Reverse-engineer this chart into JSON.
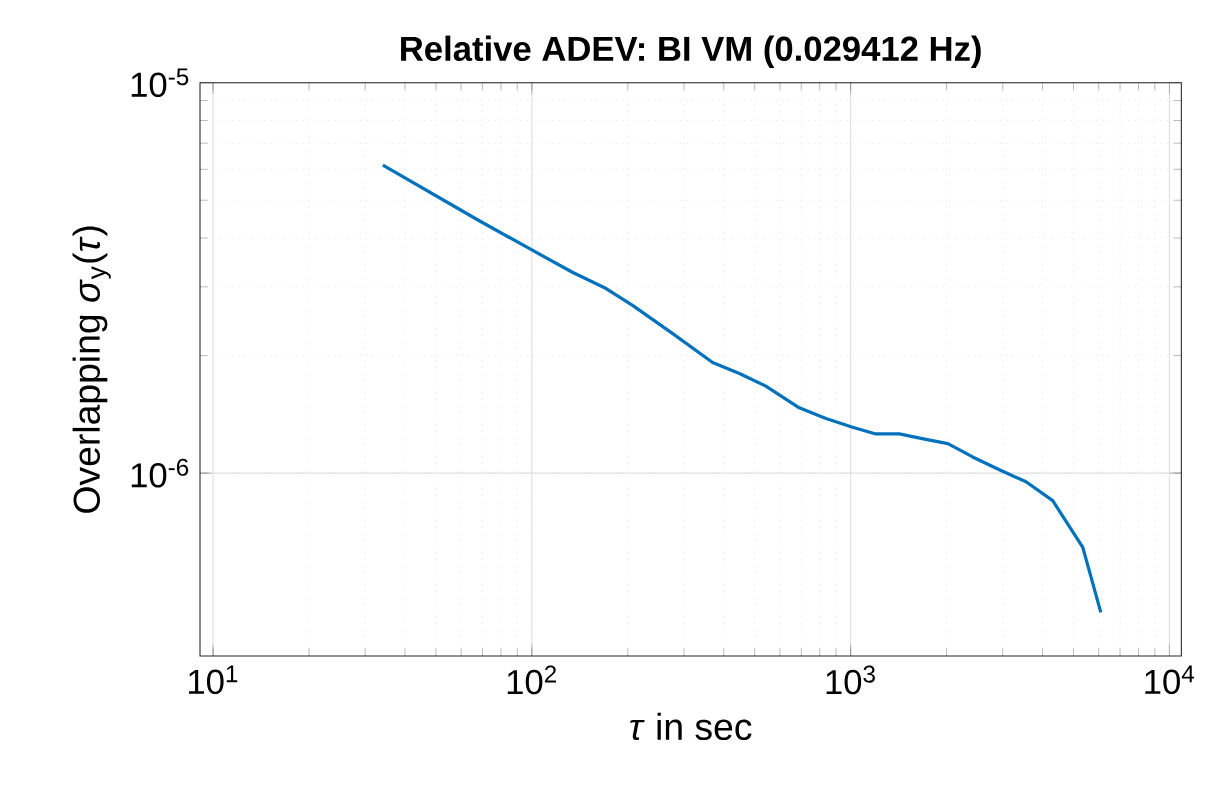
{
  "chart_data": {
    "type": "line",
    "title": "Relative ADEV: BI VM (0.029412 Hz)",
    "xlabel": "*τ* in sec",
    "ylabel": "Overlapping *σ*$_{y}$(*τ*)",
    "log": "xy",
    "grid": true,
    "line_style": "solid",
    "xlim": [
      9.1,
      10900
    ],
    "ylim": [
      3.4e-07,
      1e-05
    ],
    "xticks": [
      {
        "value": 10,
        "label": "10$^{1}$"
      },
      {
        "value": 100,
        "label": "10$^{2}$"
      },
      {
        "value": 1000,
        "label": "10$^{3}$"
      },
      {
        "value": 10000,
        "label": "10$^{4}$"
      }
    ],
    "yticks": [
      {
        "value": 1e-06,
        "label": "10$^{-6}$"
      },
      {
        "value": 1e-05,
        "label": "10$^{-5}$"
      }
    ],
    "series": [
      {
        "color": "#0072bd",
        "x": [
          34.1,
          68.4,
          100,
          134,
          171,
          207,
          276,
          369,
          448,
          542,
          690,
          837,
          1014,
          1200,
          1421,
          1722,
          2019,
          2414,
          2928,
          3550,
          4305,
          5350,
          6093
        ],
        "values": [
          6.15e-06,
          4.43e-06,
          3.73e-06,
          3.27e-06,
          2.97e-06,
          2.69e-06,
          2.28e-06,
          1.92e-06,
          1.8e-06,
          1.67e-06,
          1.47e-06,
          1.38e-06,
          1.31e-06,
          1.26e-06,
          1.26e-06,
          1.22e-06,
          1.19e-06,
          1.1e-06,
          1.02e-06,
          9.5e-07,
          8.5e-07,
          6.45e-07,
          4.4e-07
        ]
      }
    ]
  }
}
